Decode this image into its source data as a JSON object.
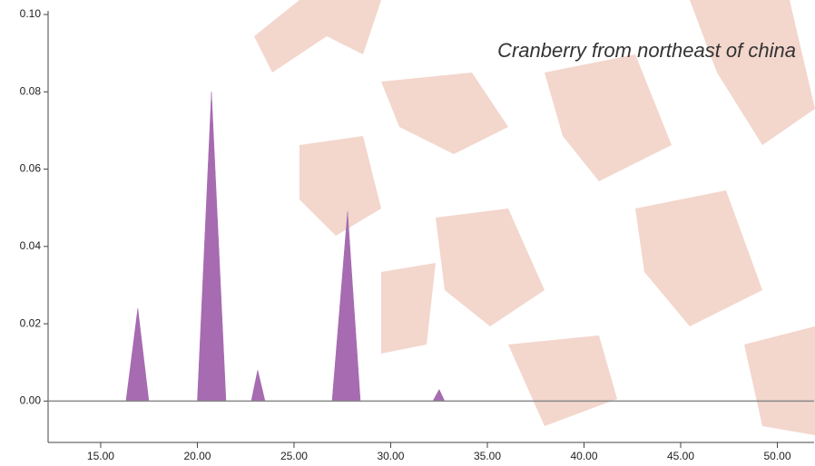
{
  "chart_data": {
    "type": "area",
    "title": "Cranberry from northeast of china",
    "x": [
      16.31,
      16.92,
      17.49,
      20.0,
      20.73,
      21.48,
      22.79,
      23.12,
      23.5,
      26.97,
      27.77,
      28.43,
      32.18,
      32.51,
      32.79
    ],
    "values": [
      0,
      0.024,
      0,
      0,
      0.08,
      0,
      0,
      0.008,
      0,
      0,
      0.049,
      0,
      0,
      0.003,
      0
    ],
    "color": "#a66bb0",
    "xlim": [
      12.28,
      51.9
    ],
    "ylim": [
      -0.01,
      0.1
    ],
    "xticks": [
      {
        "value": 15,
        "label": "15.00"
      },
      {
        "value": 20,
        "label": "20.00"
      },
      {
        "value": 25,
        "label": "25.00"
      },
      {
        "value": 30,
        "label": "30.00"
      },
      {
        "value": 35,
        "label": "35.00"
      },
      {
        "value": 40,
        "label": "40.00"
      },
      {
        "value": 45,
        "label": "45.00"
      },
      {
        "value": 50,
        "label": "50.00"
      }
    ],
    "yticks": [
      {
        "value": 0,
        "label": "0.00"
      },
      {
        "value": 0.02,
        "label": "0.02"
      },
      {
        "value": 0.04,
        "label": "0.04"
      },
      {
        "value": 0.06,
        "label": "0.06"
      },
      {
        "value": 0.08,
        "label": "0.08"
      },
      {
        "value": 0.1,
        "label": "0.10"
      }
    ]
  }
}
